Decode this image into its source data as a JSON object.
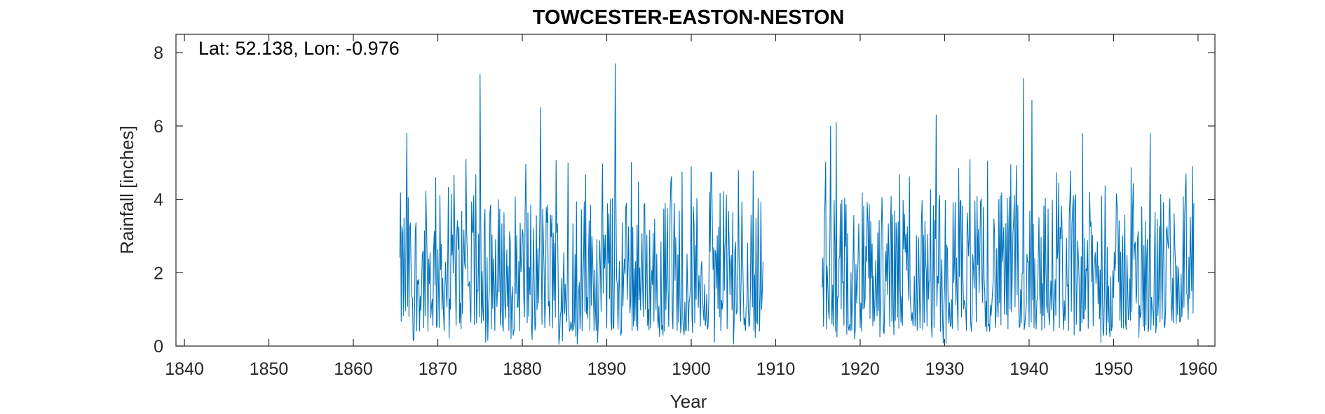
{
  "chart_data": {
    "type": "line",
    "title": "TOWCESTER-EASTON-NESTON",
    "xlabel": "Year",
    "ylabel": "Rainfall [inches]",
    "annotation": "Lat: 52.138, Lon: -0.976",
    "xlim": [
      1839,
      1962
    ],
    "ylim": [
      0,
      8.5
    ],
    "xticks": [
      1840,
      1850,
      1860,
      1870,
      1880,
      1890,
      1900,
      1910,
      1920,
      1930,
      1940,
      1950,
      1960
    ],
    "yticks": [
      0,
      2,
      4,
      6,
      8
    ],
    "grid": false,
    "line_color": "#0072BD",
    "series": [
      {
        "segments": [
          {
            "start_year": 1865.5,
            "end_year": 1908.5,
            "approx_max": 7.7,
            "approx_max_year": 1891,
            "approx_min": 0.0,
            "typical_range": [
              0.5,
              4.5
            ]
          },
          {
            "start_year": 1915.5,
            "end_year": 1959.5,
            "approx_max": 7.3,
            "approx_max_year": 1939.3,
            "approx_min": 0.0,
            "typical_range": [
              0.5,
              4.5
            ]
          }
        ]
      }
    ],
    "peaks": [
      {
        "x": 1866.3,
        "y": 5.8
      },
      {
        "x": 1875.0,
        "y": 7.4
      },
      {
        "x": 1882.2,
        "y": 6.5
      },
      {
        "x": 1891.0,
        "y": 7.7
      },
      {
        "x": 1916.5,
        "y": 6.0
      },
      {
        "x": 1917.2,
        "y": 6.1
      },
      {
        "x": 1929.0,
        "y": 6.3
      },
      {
        "x": 1939.3,
        "y": 7.3
      },
      {
        "x": 1940.3,
        "y": 6.7
      },
      {
        "x": 1946.3,
        "y": 5.8
      },
      {
        "x": 1954.3,
        "y": 5.8
      },
      {
        "x": 1959.3,
        "y": 4.9
      }
    ]
  }
}
